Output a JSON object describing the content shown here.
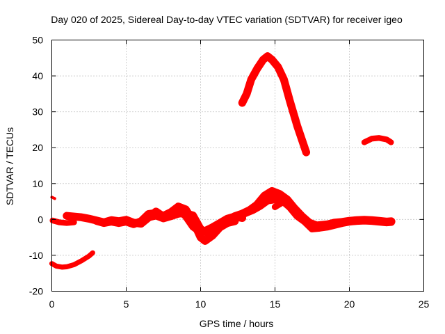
{
  "chart_data": {
    "type": "scatter",
    "title": "Day 020 of 2025, Sidereal Day-to-day VTEC variation (SDTVAR) for receiver igeo",
    "xlabel": "GPS time / hours",
    "ylabel": "SDTVAR / TECUs",
    "xlim": [
      0,
      25
    ],
    "ylim": [
      -20,
      50
    ],
    "xticks": [
      0,
      5,
      10,
      15,
      20,
      25
    ],
    "yticks": [
      -20,
      -10,
      0,
      10,
      20,
      30,
      40,
      50
    ],
    "xtick_labels": [
      "0",
      "5",
      "10",
      "15",
      "20",
      "25"
    ],
    "ytick_labels": [
      "-20",
      "-10",
      "0",
      "10",
      "20",
      "30",
      "40",
      "50"
    ],
    "grid": true,
    "series_color": "#ff0000",
    "series": [
      {
        "name": "arc-spike-start",
        "band": 0.8,
        "x": [
          0.0,
          0.2
        ],
        "y": [
          6.2,
          5.8
        ]
      },
      {
        "name": "arc-start-zero",
        "band": 1.6,
        "x": [
          0.05,
          0.5,
          1.0,
          1.5
        ],
        "y": [
          -0.3,
          -0.8,
          -1.0,
          -0.8
        ]
      },
      {
        "name": "arc-low-start",
        "band": 1.4,
        "x": [
          0.0,
          0.3,
          0.7,
          1.0,
          1.5,
          2.0,
          2.5,
          2.75
        ],
        "y": [
          -12.3,
          -13.0,
          -13.3,
          -13.2,
          -12.6,
          -11.5,
          -10.2,
          -9.3
        ]
      },
      {
        "name": "arc-morning-a",
        "band": 2.2,
        "x": [
          1.0,
          1.5,
          2.0,
          2.5,
          3.0,
          3.5,
          4.0,
          4.5,
          5.0,
          5.5,
          6.0,
          6.5,
          7.0,
          7.5,
          8.0,
          8.5,
          9.0,
          9.5,
          10.0,
          10.3,
          10.8,
          11.3,
          11.8,
          12.3,
          12.8
        ],
        "y": [
          1.0,
          0.8,
          0.6,
          0.2,
          -0.3,
          -0.8,
          -0.2,
          -0.5,
          -0.1,
          -0.9,
          -1.2,
          0.5,
          2.2,
          0.8,
          1.2,
          2.8,
          1.0,
          -2.0,
          -3.5,
          -3.2,
          -2.2,
          -1.0,
          0.2,
          0.8,
          0.4
        ]
      },
      {
        "name": "arc-morning-b",
        "band": 2.2,
        "x": [
          3.0,
          3.5,
          4.0,
          4.5,
          5.0,
          5.5,
          6.0,
          6.5,
          7.0,
          7.5,
          8.0,
          8.5,
          9.0,
          9.5,
          10.0,
          10.3,
          10.8,
          11.3,
          11.8,
          12.3
        ],
        "y": [
          -0.4,
          -1.0,
          -0.6,
          -1.0,
          -0.6,
          -1.3,
          -0.5,
          1.5,
          1.8,
          1.0,
          2.0,
          3.6,
          2.8,
          -0.5,
          -5.0,
          -6.0,
          -4.5,
          -2.2,
          -1.0,
          -0.5
        ]
      },
      {
        "name": "arc-morning-c",
        "band": 2.0,
        "x": [
          6.5,
          7.0,
          7.5,
          8.0,
          8.5,
          9.0,
          9.5,
          10.0,
          10.5,
          11.0,
          11.5
        ],
        "y": [
          0.5,
          1.0,
          0.2,
          0.8,
          1.5,
          1.8,
          1.2,
          -2.5,
          -4.0,
          -3.0,
          -1.6
        ]
      },
      {
        "name": "arc-midday-a",
        "band": 2.4,
        "x": [
          12.3,
          12.8,
          13.3,
          13.8,
          14.3,
          14.8,
          15.3,
          15.8,
          16.3,
          16.8,
          17.3,
          17.8,
          18.5,
          19.0,
          19.5,
          20.0,
          20.5,
          21.0,
          21.5,
          22.0,
          22.5,
          22.8
        ],
        "y": [
          0.8,
          1.5,
          2.5,
          4.0,
          6.5,
          7.8,
          7.0,
          5.5,
          3.0,
          0.8,
          -1.0,
          -1.8,
          -1.5,
          -1.0,
          -0.8,
          -0.5,
          -0.3,
          -0.2,
          -0.3,
          -0.5,
          -0.7,
          -0.6
        ]
      },
      {
        "name": "arc-midday-b",
        "band": 2.2,
        "x": [
          13.0,
          13.5,
          14.0,
          14.5,
          15.0,
          15.5,
          16.0,
          16.5,
          17.0,
          17.5,
          18.0,
          18.5,
          19.0,
          19.5,
          20.0
        ],
        "y": [
          1.8,
          2.6,
          3.8,
          5.3,
          5.6,
          5.3,
          3.5,
          1.0,
          -0.5,
          -2.5,
          -2.3,
          -2.0,
          -1.5,
          -1.0,
          -0.6
        ]
      },
      {
        "name": "arc-midday-c",
        "band": 1.8,
        "x": [
          15.0,
          15.2,
          15.4
        ],
        "y": [
          3.5,
          4.0,
          4.5
        ]
      },
      {
        "name": "arc-high",
        "band": 2.2,
        "x": [
          12.8,
          13.1,
          13.4,
          13.8,
          14.2,
          14.5,
          14.8,
          15.2,
          15.6,
          16.0,
          16.5,
          17.1
        ],
        "y": [
          32.5,
          35.0,
          39.0,
          42.0,
          44.5,
          45.5,
          44.5,
          42.5,
          39.0,
          33.0,
          26.0,
          18.7
        ]
      },
      {
        "name": "arc-evening-high",
        "band": 1.6,
        "x": [
          21.0,
          21.5,
          22.0,
          22.5,
          22.8
        ],
        "y": [
          21.5,
          22.5,
          22.7,
          22.3,
          21.5
        ]
      }
    ]
  }
}
